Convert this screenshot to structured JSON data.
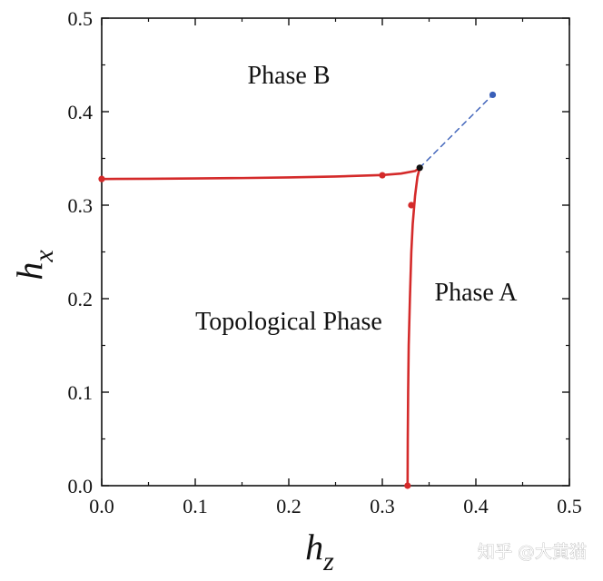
{
  "chart_data": {
    "type": "line",
    "title": "",
    "xlabel": "h",
    "xlabel_sub": "z",
    "ylabel": "h",
    "ylabel_sub": "x",
    "xlim": [
      0.0,
      0.5
    ],
    "ylim": [
      0.0,
      0.5
    ],
    "xticks": [
      "0.0",
      "0.1",
      "0.2",
      "0.3",
      "0.4",
      "0.5"
    ],
    "yticks": [
      "0.0",
      "0.1",
      "0.2",
      "0.3",
      "0.4",
      "0.5"
    ],
    "grid": false,
    "colors": {
      "boundary": "#d42a2a",
      "dashed": "#3a5fb8",
      "tricritical": "#111111"
    },
    "series": [
      {
        "name": "horizontal-boundary",
        "style": "solid",
        "color": "#d42a2a",
        "x": [
          0.0,
          0.05,
          0.1,
          0.15,
          0.2,
          0.25,
          0.3,
          0.32,
          0.335,
          0.34
        ],
        "y": [
          0.328,
          0.3282,
          0.3286,
          0.329,
          0.3297,
          0.3306,
          0.3322,
          0.3338,
          0.3365,
          0.34
        ]
      },
      {
        "name": "vertical-boundary",
        "style": "solid",
        "color": "#d42a2a",
        "x": [
          0.327,
          0.3272,
          0.3276,
          0.3282,
          0.3295,
          0.331,
          0.3325,
          0.335,
          0.3375,
          0.34
        ],
        "y": [
          0.0,
          0.05,
          0.1,
          0.15,
          0.2,
          0.25,
          0.28,
          0.31,
          0.33,
          0.34
        ]
      },
      {
        "name": "dashed-extension",
        "style": "dashed",
        "color": "#3a5fb8",
        "x": [
          0.34,
          0.418
        ],
        "y": [
          0.34,
          0.418
        ]
      }
    ],
    "points": [
      {
        "name": "point-left",
        "x": 0.0,
        "y": 0.328,
        "color": "#d42a2a"
      },
      {
        "name": "point-horizontal",
        "x": 0.3,
        "y": 0.332,
        "color": "#d42a2a"
      },
      {
        "name": "point-vertical",
        "x": 0.331,
        "y": 0.3,
        "color": "#d42a2a"
      },
      {
        "name": "point-bottom",
        "x": 0.327,
        "y": 0.0,
        "color": "#d42a2a"
      },
      {
        "name": "tricritical-point",
        "x": 0.34,
        "y": 0.34,
        "color": "#111111"
      },
      {
        "name": "point-end-dashed",
        "x": 0.418,
        "y": 0.418,
        "color": "#3a5fb8"
      }
    ],
    "annotations": [
      {
        "name": "phase-b-label",
        "text": "Phase B",
        "x": 0.2,
        "y": 0.43
      },
      {
        "name": "phase-a-label",
        "text": "Phase A",
        "x": 0.4,
        "y": 0.198
      },
      {
        "name": "topological-phase-label",
        "text": "Topological Phase",
        "x": 0.2,
        "y": 0.167
      }
    ]
  },
  "watermark": "知乎 @大黄猫"
}
